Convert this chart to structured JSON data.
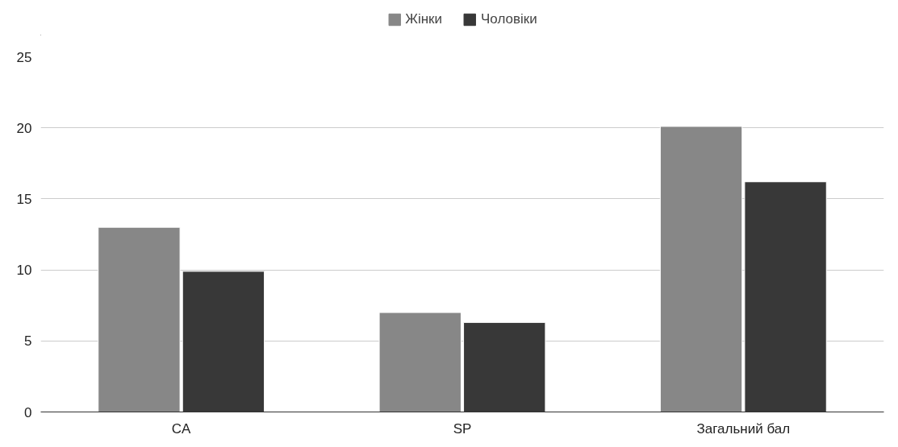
{
  "chart_data": {
    "type": "bar",
    "categories": [
      "CA",
      "SP",
      "Загальний бал"
    ],
    "series": [
      {
        "name": "Жінки",
        "color": "#878787",
        "values": [
          13,
          7,
          20.1
        ]
      },
      {
        "name": "Чоловіки",
        "color": "#383838",
        "values": [
          9.9,
          6.3,
          16.2
        ]
      }
    ],
    "ylim": [
      0,
      25
    ],
    "yticks": [
      0,
      5,
      10,
      15,
      20,
      25
    ],
    "grid": "y",
    "legend": "top"
  }
}
